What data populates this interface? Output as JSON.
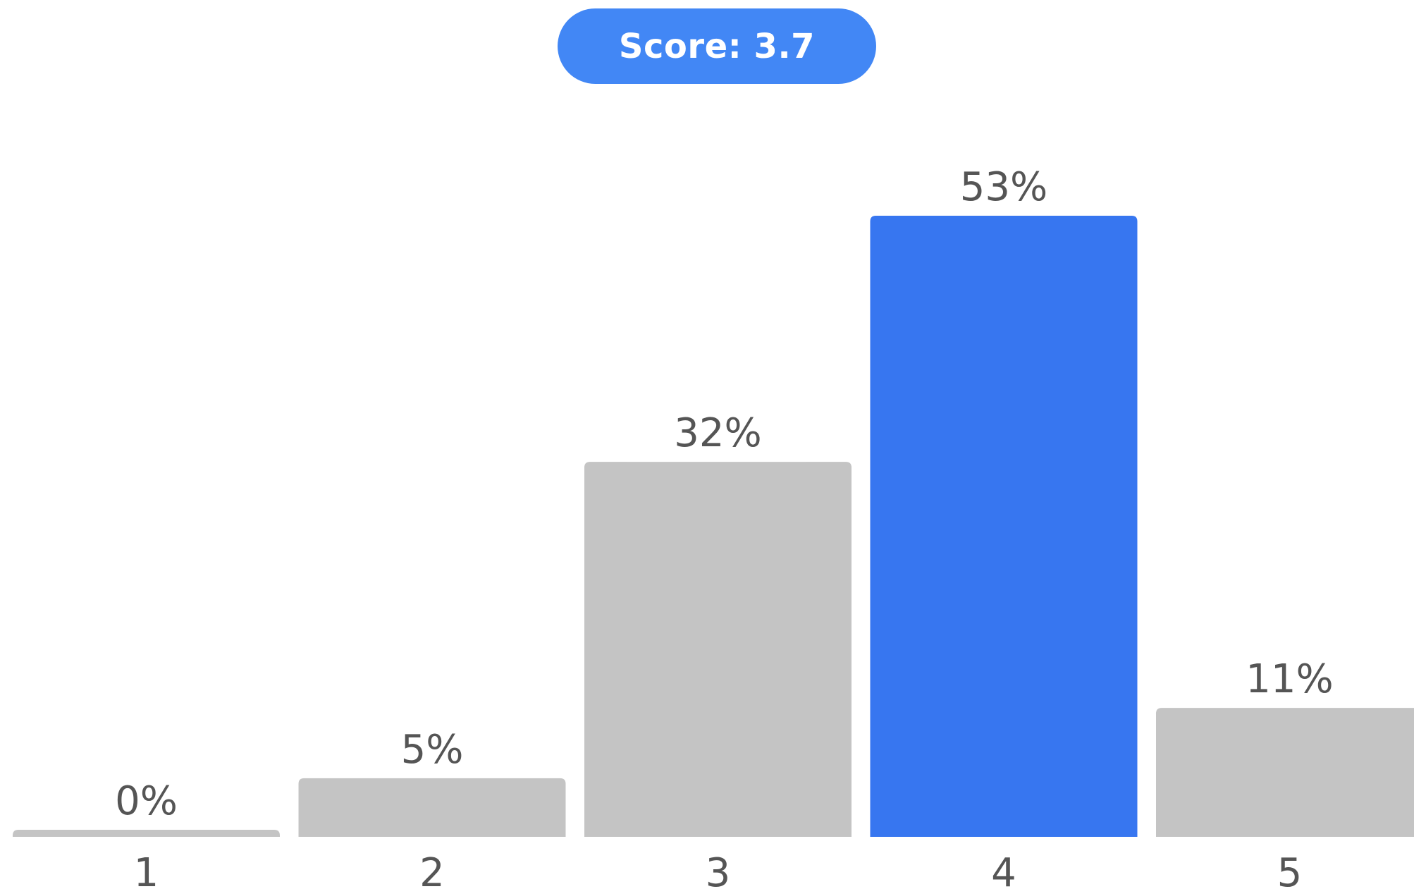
{
  "score_badge": {
    "label": "Score: 3.7"
  },
  "colors": {
    "badge": "#4287f5",
    "highlight": "#3776f0",
    "bar": "#c4c4c4",
    "text": "#555555"
  },
  "chart_data": {
    "type": "bar",
    "categories": [
      "1",
      "2",
      "3",
      "4",
      "5"
    ],
    "values": [
      0,
      5,
      32,
      53,
      11
    ],
    "data_labels": [
      "0%",
      "5%",
      "32%",
      "53%",
      "11%"
    ],
    "highlight_category": "4",
    "ylim": [
      0,
      53
    ],
    "grid": false,
    "legend": "none",
    "title": "",
    "xlabel": "",
    "ylabel": ""
  }
}
